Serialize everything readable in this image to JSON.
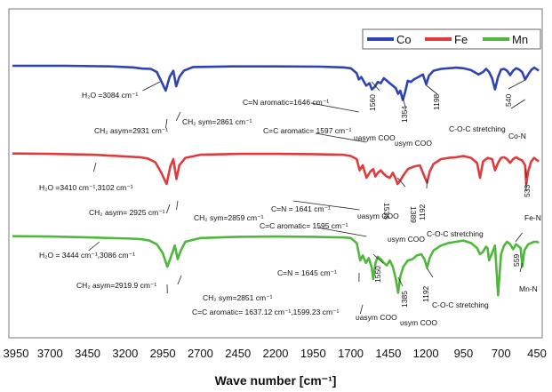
{
  "chart_data": {
    "type": "line",
    "title": "",
    "xlabel": "Wave number [cm⁻¹]",
    "ylabel": "",
    "xlim": [
      3950,
      450
    ],
    "x_ticks": [
      "3950",
      "3700",
      "3450",
      "3200",
      "2950",
      "2700",
      "2450",
      "2200",
      "1950",
      "1700",
      "1450",
      "1200",
      "950",
      "700",
      "450"
    ],
    "legend_position": "top-right",
    "series": [
      {
        "name": "Co",
        "color": "#2e44b4",
        "x": [
          3950,
          3600,
          3300,
          3150,
          3084,
          3030,
          2990,
          2960,
          2931,
          2905,
          2880,
          2861,
          2840,
          2810,
          2750,
          2500,
          2200,
          1900,
          1750,
          1700,
          1660,
          1646,
          1630,
          1597,
          1575,
          1560,
          1540,
          1520,
          1500,
          1480,
          1460,
          1440,
          1420,
          1400,
          1385,
          1370,
          1354,
          1340,
          1320,
          1300,
          1280,
          1250,
          1220,
          1198,
          1180,
          1150,
          1100,
          1050,
          1000,
          950,
          900,
          850,
          820,
          800,
          780,
          760,
          740,
          720,
          700,
          680,
          660,
          640,
          620,
          600,
          580,
          560,
          540,
          520,
          500,
          480,
          460,
          450
        ],
        "y": [
          1.0,
          1.0,
          0.99,
          0.975,
          0.955,
          0.95,
          0.9,
          0.75,
          0.6,
          0.82,
          0.92,
          0.67,
          0.82,
          0.92,
          0.98,
          0.99,
          0.99,
          0.985,
          0.975,
          0.96,
          0.88,
          0.78,
          0.82,
          0.68,
          0.72,
          0.62,
          0.66,
          0.74,
          0.72,
          0.8,
          0.76,
          0.72,
          0.68,
          0.64,
          0.55,
          0.6,
          0.45,
          0.56,
          0.76,
          0.74,
          0.78,
          0.82,
          0.86,
          0.7,
          0.84,
          0.92,
          0.95,
          0.96,
          0.97,
          0.96,
          0.93,
          0.86,
          0.9,
          0.95,
          0.9,
          0.8,
          0.62,
          0.82,
          0.94,
          0.95,
          0.92,
          0.85,
          0.92,
          0.96,
          0.94,
          0.9,
          0.78,
          0.86,
          0.93,
          0.97,
          0.94,
          0.92
        ]
      },
      {
        "name": "Fe",
        "color": "#e13a3a",
        "x": [
          3950,
          3700,
          3410,
          3250,
          3102,
          3050,
          3000,
          2960,
          2925,
          2900,
          2880,
          2859,
          2840,
          2800,
          2700,
          2450,
          2200,
          1950,
          1750,
          1700,
          1660,
          1641,
          1620,
          1595,
          1570,
          1550,
          1536,
          1520,
          1500,
          1480,
          1460,
          1440,
          1420,
          1400,
          1389,
          1370,
          1350,
          1320,
          1280,
          1240,
          1210,
          1192,
          1175,
          1150,
          1100,
          1050,
          1000,
          950,
          900,
          860,
          840,
          820,
          790,
          760,
          740,
          720,
          700,
          680,
          660,
          640,
          620,
          600,
          580,
          560,
          540,
          533,
          520,
          500,
          480,
          460,
          450
        ],
        "y": [
          0.99,
          0.985,
          0.97,
          0.95,
          0.93,
          0.91,
          0.85,
          0.68,
          0.5,
          0.78,
          0.9,
          0.58,
          0.8,
          0.92,
          0.97,
          0.985,
          0.985,
          0.98,
          0.97,
          0.95,
          0.9,
          0.72,
          0.8,
          0.6,
          0.7,
          0.74,
          0.62,
          0.68,
          0.72,
          0.66,
          0.62,
          0.6,
          0.68,
          0.58,
          0.5,
          0.56,
          0.64,
          0.74,
          0.78,
          0.8,
          0.62,
          0.52,
          0.7,
          0.82,
          0.9,
          0.92,
          0.93,
          0.95,
          0.92,
          0.84,
          0.6,
          0.86,
          0.92,
          0.9,
          0.72,
          0.84,
          0.92,
          0.93,
          0.9,
          0.84,
          0.9,
          0.93,
          0.9,
          0.88,
          0.8,
          0.5,
          0.7,
          0.86,
          0.92,
          0.88,
          0.86
        ]
      },
      {
        "name": "Mn",
        "color": "#4fb83c",
        "x": [
          3950,
          3700,
          3444,
          3300,
          3150,
          3086,
          3040,
          2990,
          2950,
          2919.9,
          2890,
          2870,
          2851,
          2830,
          2800,
          2700,
          2450,
          2200,
          1950,
          1750,
          1700,
          1660,
          1645,
          1637.12,
          1620,
          1599.23,
          1580,
          1560,
          1550,
          1535,
          1520,
          1500,
          1480,
          1460,
          1440,
          1420,
          1400,
          1385,
          1370,
          1350,
          1320,
          1290,
          1260,
          1230,
          1210,
          1192,
          1175,
          1150,
          1100,
          1050,
          1000,
          950,
          900,
          860,
          840,
          820,
          800,
          790,
          780,
          760,
          740,
          720,
          700,
          680,
          660,
          640,
          620,
          600,
          580,
          570,
          559,
          545,
          520,
          500,
          480,
          460,
          450
        ],
        "y": [
          0.99,
          0.985,
          0.97,
          0.96,
          0.95,
          0.94,
          0.92,
          0.86,
          0.72,
          0.5,
          0.7,
          0.84,
          0.62,
          0.76,
          0.9,
          0.96,
          0.98,
          0.985,
          0.98,
          0.97,
          0.96,
          0.88,
          0.7,
          0.6,
          0.68,
          0.56,
          0.64,
          0.48,
          0.3,
          0.56,
          0.66,
          0.62,
          0.56,
          0.52,
          0.6,
          0.5,
          0.3,
          0.08,
          0.35,
          0.5,
          0.6,
          0.62,
          0.68,
          0.7,
          0.62,
          0.48,
          0.64,
          0.76,
          0.84,
          0.88,
          0.9,
          0.92,
          0.88,
          0.8,
          0.7,
          0.74,
          0.82,
          0.8,
          0.6,
          0.72,
          0.84,
          0.04,
          0.7,
          0.84,
          0.9,
          0.86,
          0.78,
          0.86,
          0.82,
          0.8,
          0.5,
          0.76,
          0.86,
          0.88,
          0.9,
          0.9,
          0.88
        ]
      }
    ],
    "annotations": [
      {
        "series": "Co",
        "text": "H₂O =3084 cm⁻¹",
        "x": 3084
      },
      {
        "series": "Co",
        "text": "CH₂ asym=2931 cm⁻¹",
        "x": 2931
      },
      {
        "series": "Co",
        "text": "CH₂ sym=2861 cm⁻¹",
        "x": 2861
      },
      {
        "series": "Co",
        "text": "C=N aromatic=1646 cm⁻¹",
        "x": 1646
      },
      {
        "series": "Co",
        "text": "C=C aromatic= 1597 cm⁻¹",
        "x": 1597
      },
      {
        "series": "Co",
        "text": "1560",
        "x": 1560
      },
      {
        "series": "Co",
        "text": "υasym COO",
        "x": 1500
      },
      {
        "series": "Co",
        "text": "1354",
        "x": 1354
      },
      {
        "series": "Co",
        "text": "υsym COO",
        "x": 1380
      },
      {
        "series": "Co",
        "text": "1198",
        "x": 1198
      },
      {
        "series": "Co",
        "text": "C-O-C stretching",
        "x": 1198
      },
      {
        "series": "Co",
        "text": "540",
        "x": 540
      },
      {
        "series": "Co",
        "text": "Co-N",
        "x": 540
      },
      {
        "series": "Fe",
        "text": "H₂O =3410 cm⁻¹,3102 cm⁻¹",
        "x": 3410
      },
      {
        "series": "Fe",
        "text": "CH₂ asym= 2925 cm⁻¹",
        "x": 2925
      },
      {
        "series": "Fe",
        "text": "CH₂ sym=2859 cm⁻¹",
        "x": 2859
      },
      {
        "series": "Fe",
        "text": "C=N = 1641 cm⁻¹",
        "x": 1641
      },
      {
        "series": "Fe",
        "text": "C=C aromatic= 1595 cm⁻¹",
        "x": 1595
      },
      {
        "series": "Fe",
        "text": "1536",
        "x": 1536
      },
      {
        "series": "Fe",
        "text": "υasym COO",
        "x": 1536
      },
      {
        "series": "Fe",
        "text": "1389",
        "x": 1389
      },
      {
        "series": "Fe",
        "text": "υsym COO",
        "x": 1389
      },
      {
        "series": "Fe",
        "text": "1192",
        "x": 1192
      },
      {
        "series": "Fe",
        "text": "C-O-C stretching",
        "x": 1192
      },
      {
        "series": "Fe",
        "text": "533",
        "x": 533
      },
      {
        "series": "Fe",
        "text": "Fe-N",
        "x": 533
      },
      {
        "series": "Mn",
        "text": "H₂O = 3444 cm⁻¹,3086 cm⁻¹",
        "x": 3444
      },
      {
        "series": "Mn",
        "text": "CH₂ asym=2919.9 cm⁻¹",
        "x": 2919.9
      },
      {
        "series": "Mn",
        "text": "CH₂ sym=2851 cm⁻¹",
        "x": 2851
      },
      {
        "series": "Mn",
        "text": "C=N = 1645 cm⁻¹",
        "x": 1645
      },
      {
        "series": "Mn",
        "text": "C=C aromatic= 1637.12 cm⁻¹,1599.23 cm⁻¹",
        "x": 1637.12
      },
      {
        "series": "Mn",
        "text": "1550",
        "x": 1550
      },
      {
        "series": "Mn",
        "text": "υasym COO",
        "x": 1550
      },
      {
        "series": "Mn",
        "text": "1385",
        "x": 1385
      },
      {
        "series": "Mn",
        "text": "υsym COO",
        "x": 1385
      },
      {
        "series": "Mn",
        "text": "1192",
        "x": 1192
      },
      {
        "series": "Mn",
        "text": "C-O-C stretching",
        "x": 1192
      },
      {
        "series": "Mn",
        "text": "559",
        "x": 559
      },
      {
        "series": "Mn",
        "text": "Mn-N",
        "x": 559
      }
    ]
  }
}
